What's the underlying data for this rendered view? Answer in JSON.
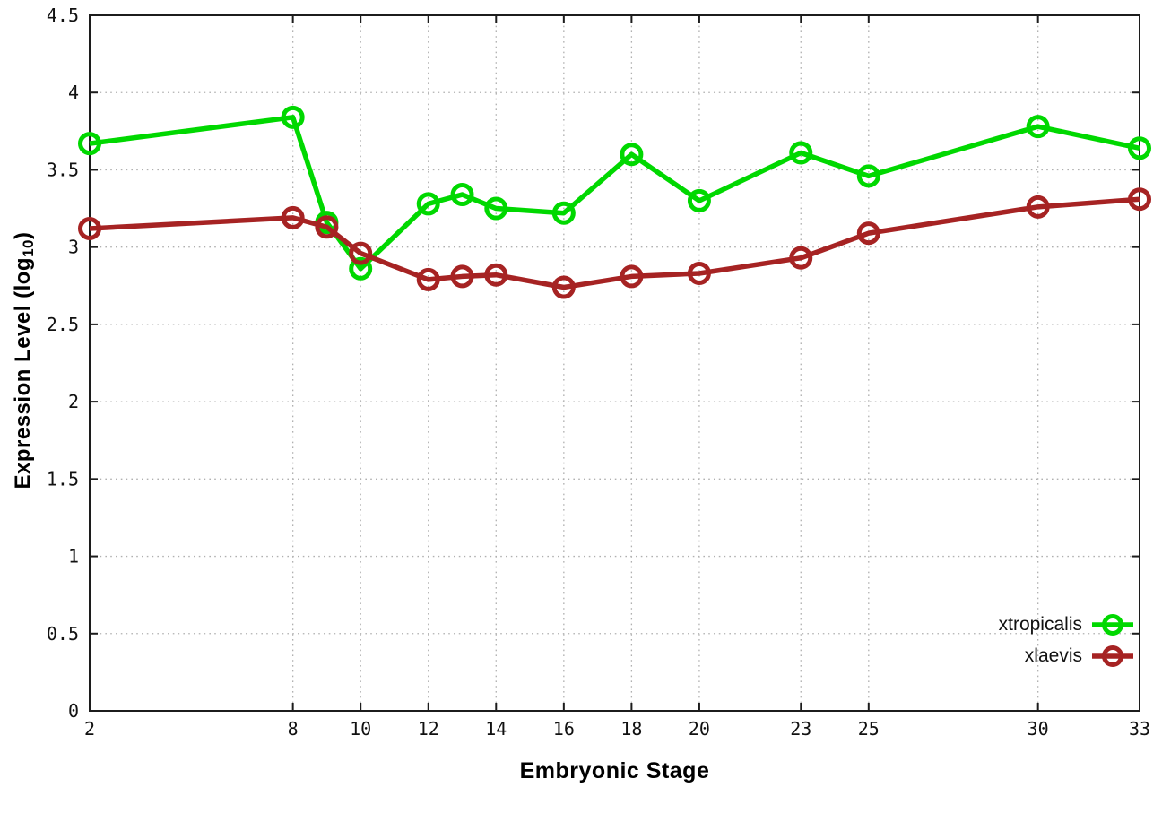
{
  "chart": {
    "xlabel": "Embryonic Stage",
    "ylabel_prefix": "Expression Level (log",
    "ylabel_sub": "10",
    "ylabel_suffix": ")"
  },
  "chart_data": {
    "type": "line",
    "title": "",
    "xlabel": "Embryonic Stage",
    "ylabel": "Expression Level (log10)",
    "xlim": [
      2,
      33
    ],
    "ylim": [
      0,
      4.5
    ],
    "grid": true,
    "grid_style": "dotted",
    "legend_position": "bottom-right",
    "marker": "open-circle",
    "x": [
      2,
      8,
      9,
      10,
      12,
      13,
      14,
      16,
      18,
      20,
      23,
      25,
      30,
      33
    ],
    "x_ticks": [
      2,
      8,
      10,
      12,
      14,
      16,
      18,
      20,
      23,
      25,
      30,
      33
    ],
    "y_ticks": [
      0,
      0.5,
      1,
      1.5,
      2,
      2.5,
      3,
      3.5,
      4,
      4.5
    ],
    "y_tick_labels": [
      "0",
      "0.5",
      "1",
      "1.5",
      "2",
      "2.5",
      "3",
      "3.5",
      "4",
      "4.5"
    ],
    "series": [
      {
        "name": "xtropicalis",
        "color": "#00d800",
        "values": [
          3.67,
          3.84,
          3.16,
          2.86,
          3.28,
          3.34,
          3.25,
          3.22,
          3.6,
          3.3,
          3.61,
          3.46,
          3.78,
          3.64
        ]
      },
      {
        "name": "xlaevis",
        "color": "#a62323",
        "values": [
          3.12,
          3.19,
          3.13,
          2.96,
          2.79,
          2.81,
          2.82,
          2.74,
          2.81,
          2.83,
          2.93,
          3.09,
          3.26,
          3.31
        ]
      }
    ],
    "axis_color": "#1c1c1c",
    "grid_color": "#b0b0b0"
  }
}
